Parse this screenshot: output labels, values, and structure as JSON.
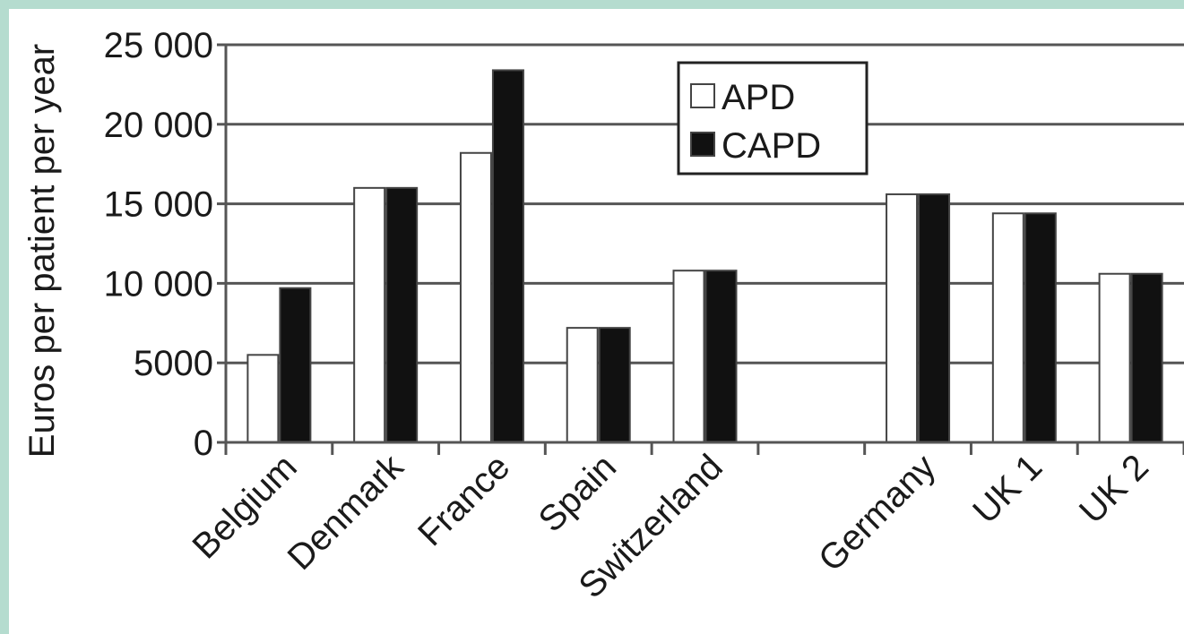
{
  "chart_data": {
    "type": "bar",
    "ylabel": "Euros per patient per year",
    "xlabel": "",
    "ylim": [
      0,
      25000
    ],
    "yticks": [
      0,
      5000,
      10000,
      15000,
      20000,
      25000
    ],
    "ytick_labels": [
      "0",
      "5000",
      "10 000",
      "15 000",
      "20 000",
      "25 000"
    ],
    "categories": [
      "Belgium",
      "Denmark",
      "France",
      "Spain",
      "Switzerland",
      "",
      "Germany",
      "UK 1",
      "UK 2"
    ],
    "series": [
      {
        "name": "APD",
        "color": "#ffffff",
        "values": [
          5500,
          16000,
          18200,
          7200,
          10800,
          null,
          15600,
          14400,
          10600
        ]
      },
      {
        "name": "CAPD",
        "color": "#111111",
        "values": [
          9700,
          16000,
          23400,
          7200,
          10800,
          null,
          15600,
          14400,
          10600
        ]
      }
    ],
    "grid": true,
    "legend_position": "top-center"
  },
  "colors": {
    "frame": "#b5dccf",
    "gridline": "#555555",
    "bar_outline": "#444444"
  }
}
